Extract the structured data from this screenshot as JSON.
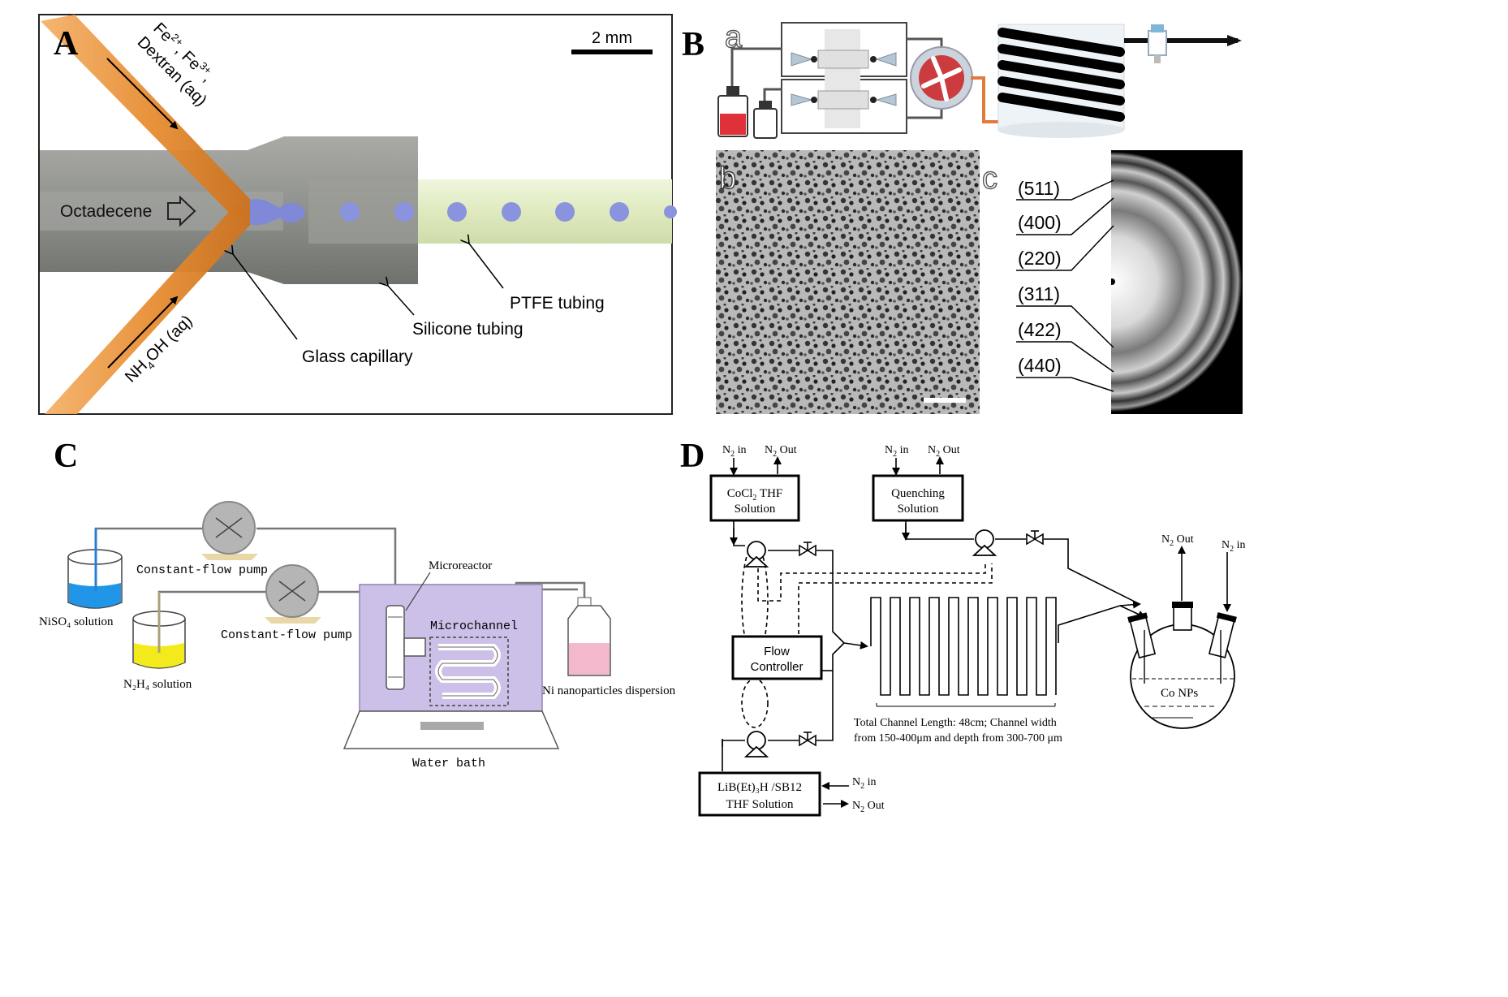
{
  "panel_a": {
    "letter": "A",
    "scale_bar": "2 mm",
    "reagent_top_1": "Fe",
    "reagent_top_1_sup": "2+",
    "reagent_top_2": ", Fe",
    "reagent_top_2_sup": "3+",
    "reagent_top_3": ",",
    "reagent_top_4": "Dextran (aq)",
    "reagent_bottom": "NH",
    "reagent_bottom_sub": "4",
    "reagent_bottom_rest": "OH (aq)",
    "octadecene": "Octadecene",
    "ptfe": "PTFE tubing",
    "silicone": "Silicone tubing",
    "glass": "Glass capillary"
  },
  "panel_b": {
    "letter": "B",
    "sub_a": "a",
    "sub_b": "b",
    "sub_c": "c",
    "rings": [
      "(511)",
      "(400)",
      "(220)",
      "(311)",
      "(422)",
      "(440)"
    ]
  },
  "panel_c": {
    "letter": "C",
    "pump1": "Constant-flow pump",
    "pump2": "Constant-flow pump",
    "niso4": "NiSO₄ solution",
    "n2h4": "N₂H₄ solution",
    "microreactor": "Microreactor",
    "microchannel": "Microchannel",
    "ni_np": "Ni nanoparticles dispersion",
    "water_bath": "Water bath"
  },
  "panel_d": {
    "letter": "D",
    "n2_in": "N",
    "n2_sub": "2",
    "in": " in",
    "out": " Out",
    "cocl2_l1a": "CoCl",
    "cocl2_l1b": " THF",
    "cocl2_l2": "Solution",
    "quench_l1": "Quenching",
    "quench_l2": "Solution",
    "flow_l1": "Flow",
    "flow_l2": "Controller",
    "lib_l1": "LiB(Et)₃H /SB12",
    "lib_l2": "THF Solution",
    "channel_l1": "Total Channel Length: 48cm; Channel width",
    "channel_l2": "from 150-400μm and depth from 300-700 μm",
    "co_nps": "Co NPs"
  },
  "colors": {
    "orange_tube": "#e8973e",
    "grey_tube": "#8c8e89",
    "ptfe_green": "#e4efc9",
    "droplet_blue": "#8a93dd",
    "bath_purple": "#cdc0e8",
    "niso4_blue": "#2196e8",
    "n2h4_yellow": "#f2ea1a",
    "np_pink": "#f4b8cc"
  }
}
